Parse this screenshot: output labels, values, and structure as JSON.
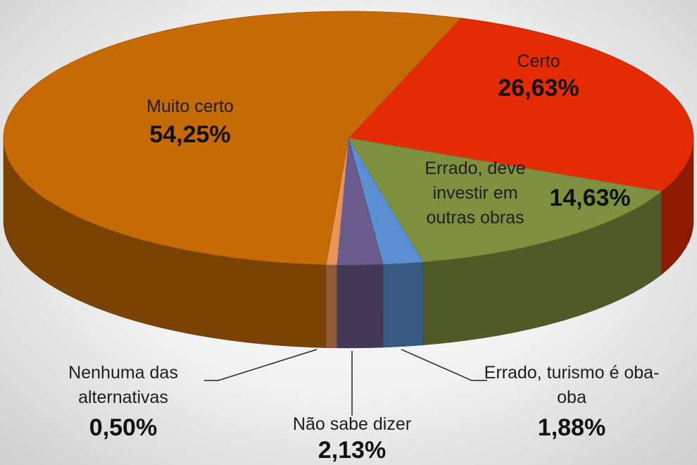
{
  "chart_data": {
    "type": "pie",
    "categories": [
      "Certo",
      "Errado, deve investir em outras obras",
      "Errado, turismo é oba-oba",
      "Não sabe dizer",
      "Nenhuma das alternativas",
      "Muito certo"
    ],
    "values": [
      26.63,
      14.63,
      1.88,
      2.13,
      0.5,
      54.25
    ],
    "value_labels": [
      "26,63%",
      "14,63%",
      "1,88%",
      "2,13%",
      "0,50%",
      "54,25%"
    ],
    "colors": [
      "#e52a06",
      "#7f913f",
      "#5b8fd2",
      "#6b5a8c",
      "#e8955a",
      "#c56a05"
    ]
  }
}
